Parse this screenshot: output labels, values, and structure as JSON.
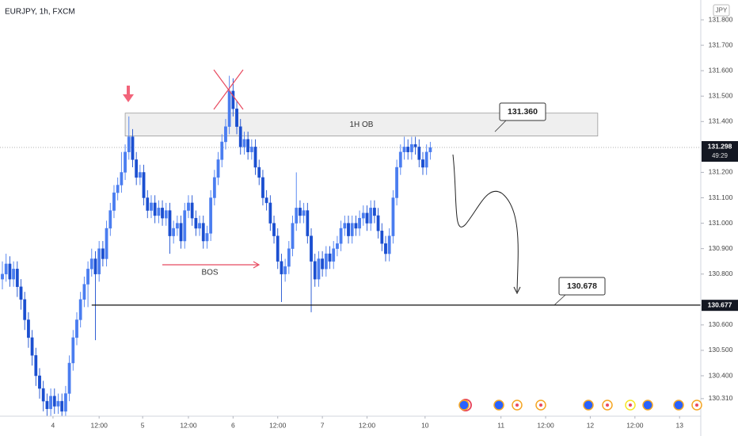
{
  "chart_data": {
    "type": "candlestick",
    "title": "EURJPY, 1h, FXCM",
    "currency": "JPY",
    "up_color": "#4a7df0",
    "down_color": "#1b4fd0",
    "grid": false,
    "ylim": [
      130.241,
      131.878
    ],
    "yticks": [
      {
        "value": 131.8,
        "label": "131.800"
      },
      {
        "value": 131.7,
        "label": "131.700"
      },
      {
        "value": 131.6,
        "label": "131.600"
      },
      {
        "value": 131.5,
        "label": "131.500"
      },
      {
        "value": 131.4,
        "label": "131.400"
      },
      {
        "value": 131.2,
        "label": "131.200"
      },
      {
        "value": 131.1,
        "label": "131.100"
      },
      {
        "value": 131,
        "label": "131.000"
      },
      {
        "value": 130.9,
        "label": "130.900"
      },
      {
        "value": 130.8,
        "label": "130.800"
      },
      {
        "value": 130.6,
        "label": "130.600"
      },
      {
        "value": 130.5,
        "label": "130.500"
      },
      {
        "value": 130.4,
        "label": "130.400"
      },
      {
        "value": 130.31,
        "label": "130.310"
      }
    ],
    "xlim": [
      -0.64,
      187.7
    ],
    "xticks": [
      {
        "value": 13.6,
        "label": "4"
      },
      {
        "value": 26,
        "label": "12:00"
      },
      {
        "value": 37.7,
        "label": "5"
      },
      {
        "value": 50,
        "label": "12:00"
      },
      {
        "value": 62,
        "label": "6"
      },
      {
        "value": 74,
        "label": "12:00"
      },
      {
        "value": 86,
        "label": "7"
      },
      {
        "value": 98,
        "label": "12:00"
      },
      {
        "value": 113.6,
        "label": "10"
      },
      {
        "value": 134,
        "label": "11"
      },
      {
        "value": 146,
        "label": "12:00"
      },
      {
        "value": 158,
        "label": "12"
      },
      {
        "value": 170,
        "label": "12:00"
      },
      {
        "value": 182,
        "label": "13"
      }
    ],
    "candles": [
      [
        130.78,
        130.85,
        130.74,
        130.8
      ],
      [
        130.8,
        130.88,
        130.77,
        130.84
      ],
      [
        130.84,
        130.87,
        130.75,
        130.78
      ],
      [
        130.78,
        130.85,
        130.75,
        130.82
      ],
      [
        130.82,
        130.85,
        130.71,
        130.75
      ],
      [
        130.75,
        130.78,
        130.66,
        130.7
      ],
      [
        130.7,
        130.73,
        130.58,
        130.62
      ],
      [
        130.62,
        130.65,
        130.51,
        130.55
      ],
      [
        130.55,
        130.58,
        130.44,
        130.48
      ],
      [
        130.48,
        130.51,
        130.36,
        130.4
      ],
      [
        130.4,
        130.43,
        130.31,
        130.35
      ],
      [
        130.35,
        130.38,
        130.26,
        130.3
      ],
      [
        130.3,
        130.33,
        130.24,
        130.27
      ],
      [
        130.27,
        130.35,
        130.24,
        130.32
      ],
      [
        130.32,
        130.35,
        130.25,
        130.28
      ],
      [
        130.28,
        130.33,
        130.25,
        130.3
      ],
      [
        130.3,
        130.33,
        130.24,
        130.26
      ],
      [
        130.26,
        130.36,
        130.24,
        130.33
      ],
      [
        130.33,
        130.48,
        130.3,
        130.45
      ],
      [
        130.45,
        130.58,
        130.42,
        130.55
      ],
      [
        130.55,
        130.65,
        130.52,
        130.62
      ],
      [
        130.62,
        130.73,
        130.59,
        130.7
      ],
      [
        130.7,
        130.79,
        130.67,
        130.76
      ],
      [
        130.76,
        130.85,
        130.67,
        130.82
      ],
      [
        130.82,
        130.9,
        130.79,
        130.86
      ],
      [
        130.86,
        130.89,
        130.54,
        130.8
      ],
      [
        130.8,
        130.93,
        130.77,
        130.9
      ],
      [
        130.9,
        130.93,
        130.83,
        130.86
      ],
      [
        130.86,
        131.01,
        130.83,
        130.98
      ],
      [
        130.98,
        131.08,
        130.95,
        131.05
      ],
      [
        131.05,
        131.15,
        131.02,
        131.12
      ],
      [
        131.12,
        131.18,
        131.09,
        131.15
      ],
      [
        131.15,
        131.28,
        131.12,
        131.2
      ],
      [
        131.2,
        131.31,
        131.17,
        131.28
      ],
      [
        131.28,
        131.42,
        131.25,
        131.34
      ],
      [
        131.34,
        131.37,
        131.22,
        131.25
      ],
      [
        131.25,
        131.28,
        131.15,
        131.18
      ],
      [
        131.18,
        131.23,
        131.15,
        131.2
      ],
      [
        131.2,
        131.23,
        131.07,
        131.1
      ],
      [
        131.1,
        131.13,
        131.02,
        131.05
      ],
      [
        131.05,
        131.11,
        131.02,
        131.08
      ],
      [
        131.08,
        131.11,
        131.0,
        131.03
      ],
      [
        131.03,
        131.09,
        131.0,
        131.06
      ],
      [
        131.06,
        131.09,
        130.99,
        131.02
      ],
      [
        131.02,
        131.08,
        130.99,
        131.05
      ],
      [
        131.05,
        131.08,
        130.88,
        130.95
      ],
      [
        130.95,
        131.01,
        130.92,
        130.98
      ],
      [
        130.98,
        131.03,
        130.95,
        131.0
      ],
      [
        131.0,
        131.03,
        130.9,
        130.93
      ],
      [
        130.93,
        131.08,
        130.9,
        131.05
      ],
      [
        131.05,
        131.11,
        131.02,
        131.08
      ],
      [
        131.08,
        131.11,
        130.99,
        131.02
      ],
      [
        131.02,
        131.05,
        130.95,
        130.98
      ],
      [
        130.98,
        131.03,
        130.95,
        131.0
      ],
      [
        131.0,
        131.03,
        130.9,
        130.93
      ],
      [
        130.93,
        130.99,
        130.9,
        130.96
      ],
      [
        130.96,
        131.13,
        130.93,
        131.1
      ],
      [
        131.1,
        131.21,
        131.07,
        131.18
      ],
      [
        131.18,
        131.28,
        131.15,
        131.25
      ],
      [
        131.25,
        131.35,
        131.22,
        131.32
      ],
      [
        131.32,
        131.41,
        131.29,
        131.38
      ],
      [
        131.38,
        131.58,
        131.35,
        131.52
      ],
      [
        131.52,
        131.57,
        131.42,
        131.45
      ],
      [
        131.45,
        131.48,
        131.35,
        131.38
      ],
      [
        131.38,
        131.41,
        131.27,
        131.3
      ],
      [
        131.3,
        131.36,
        131.27,
        131.33
      ],
      [
        131.33,
        131.36,
        131.25,
        131.28
      ],
      [
        131.28,
        131.33,
        131.25,
        131.3
      ],
      [
        131.3,
        131.33,
        131.19,
        131.22
      ],
      [
        131.22,
        131.25,
        131.15,
        131.18
      ],
      [
        131.18,
        131.21,
        131.07,
        131.1
      ],
      [
        131.1,
        131.13,
        131.05,
        131.08
      ],
      [
        131.08,
        131.11,
        130.97,
        131.0
      ],
      [
        131.0,
        131.03,
        130.92,
        130.95
      ],
      [
        130.95,
        130.98,
        130.82,
        130.85
      ],
      [
        130.85,
        130.88,
        130.69,
        130.8
      ],
      [
        130.8,
        130.86,
        130.77,
        130.83
      ],
      [
        130.83,
        130.93,
        130.8,
        130.9
      ],
      [
        130.9,
        131.03,
        130.87,
        131.0
      ],
      [
        131.0,
        131.2,
        130.97,
        131.06
      ],
      [
        131.06,
        131.09,
        131.0,
        131.03
      ],
      [
        131.03,
        131.08,
        131.0,
        131.05
      ],
      [
        131.05,
        131.08,
        130.92,
        130.95
      ],
      [
        130.95,
        130.98,
        130.65,
        130.85
      ],
      [
        130.85,
        130.88,
        130.75,
        130.78
      ],
      [
        130.78,
        130.89,
        130.75,
        130.86
      ],
      [
        130.86,
        130.89,
        130.79,
        130.82
      ],
      [
        130.82,
        130.91,
        130.79,
        130.88
      ],
      [
        130.88,
        130.91,
        130.82,
        130.85
      ],
      [
        130.85,
        130.93,
        130.82,
        130.9
      ],
      [
        130.9,
        130.95,
        130.87,
        130.92
      ],
      [
        130.92,
        131.01,
        130.89,
        130.98
      ],
      [
        130.98,
        131.03,
        130.95,
        131.0
      ],
      [
        131.0,
        131.03,
        130.92,
        130.95
      ],
      [
        130.95,
        131.03,
        130.92,
        131.0
      ],
      [
        131.0,
        131.03,
        130.95,
        130.98
      ],
      [
        130.98,
        131.05,
        130.95,
        131.02
      ],
      [
        131.02,
        131.07,
        130.99,
        131.04
      ],
      [
        131.04,
        131.07,
        130.97,
        131.0
      ],
      [
        131.0,
        131.09,
        130.97,
        131.06
      ],
      [
        131.06,
        131.09,
        131.0,
        131.03
      ],
      [
        131.03,
        131.06,
        130.94,
        130.97
      ],
      [
        130.97,
        131.0,
        130.89,
        130.92
      ],
      [
        130.92,
        130.95,
        130.85,
        130.88
      ],
      [
        130.88,
        130.98,
        130.85,
        130.95
      ],
      [
        130.95,
        131.13,
        130.92,
        131.1
      ],
      [
        131.1,
        131.25,
        131.07,
        131.22
      ],
      [
        131.22,
        131.31,
        131.19,
        131.28
      ],
      [
        131.28,
        131.34,
        131.25,
        131.3
      ],
      [
        131.3,
        131.33,
        131.25,
        131.28
      ],
      [
        131.28,
        131.34,
        131.25,
        131.31
      ],
      [
        131.31,
        131.34,
        131.27,
        131.3
      ],
      [
        131.3,
        131.33,
        131.22,
        131.25
      ],
      [
        131.25,
        131.28,
        131.19,
        131.22
      ],
      [
        131.22,
        131.31,
        131.19,
        131.28
      ],
      [
        131.28,
        131.32,
        131.25,
        131.298
      ]
    ],
    "countdown": "49:29",
    "order_block": {
      "label": "1H OB",
      "high": 131.433,
      "low": 131.343,
      "start": 33,
      "end": 160
    },
    "bos_label": "BOS",
    "levels": [
      {
        "value": 131.36,
        "label": "131.360"
      },
      {
        "value": 130.678,
        "label": "130.678",
        "start": 24
      }
    ],
    "level_axis_label": {
      "value": 130.677,
      "label": "130.677"
    }
  }
}
